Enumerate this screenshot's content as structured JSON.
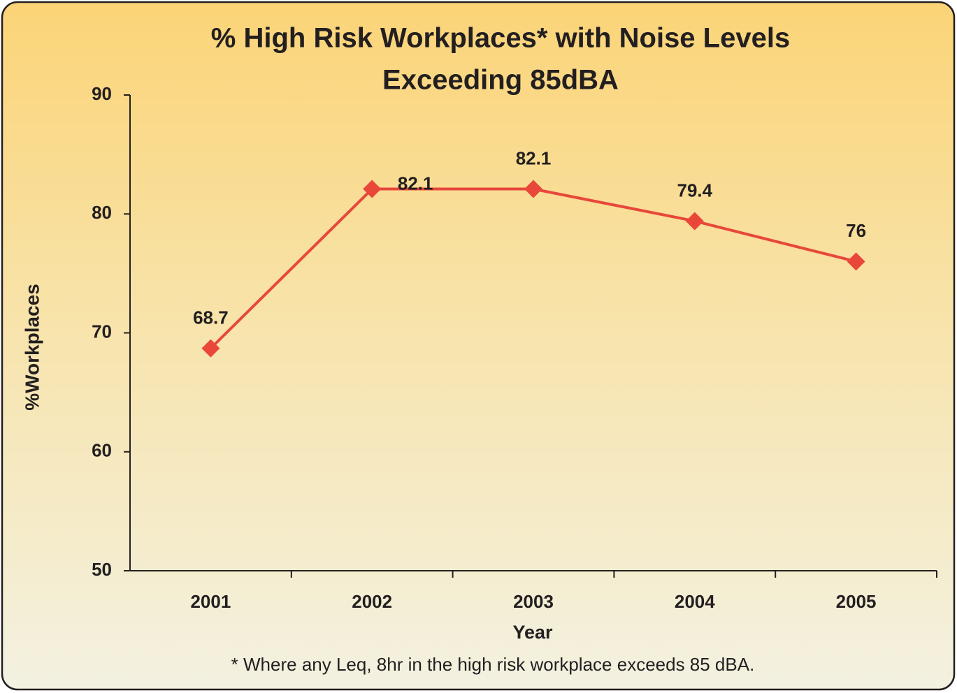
{
  "chart_data": {
    "type": "line",
    "title": [
      "% High Risk Workplaces* with Noise Levels",
      "Exceeding 85dBA"
    ],
    "x_label": "Year",
    "y_label": "%Workplaces",
    "footnote": "* Where any Leq, 8hr in the high risk workplace exceeds 85 dBA.",
    "categories": [
      "2001",
      "2002",
      "2003",
      "2004",
      "2005"
    ],
    "series": [
      {
        "name": "% High Risk Workplaces",
        "color": "#e8473a",
        "values": [
          68.7,
          82.1,
          82.1,
          79.4,
          76
        ]
      }
    ],
    "ylim": [
      50,
      90
    ],
    "yticks": [
      50,
      60,
      70,
      80,
      90
    ],
    "grid": false
  }
}
